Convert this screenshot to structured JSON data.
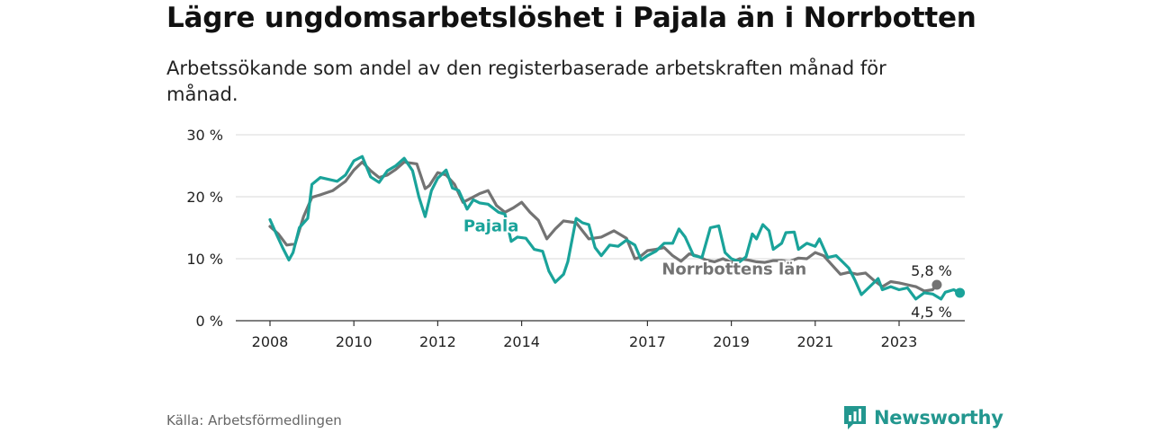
{
  "title": "Lägre ungdomsarbetslöshet i Pajala än i Norrbotten",
  "subtitle": "Arbetssökande som andel av den registerbaserade arbetskraften månad för månad.",
  "source": "Källa: Arbetsförmedlingen",
  "brand": {
    "name": "Newsworthy",
    "icon": "newsworthy-logo-icon",
    "color": "#23978f"
  },
  "chart_data": {
    "type": "line",
    "ylim": [
      0,
      30
    ],
    "y_ticks": [
      0,
      10,
      20,
      30
    ],
    "y_tick_labels": [
      "0 %",
      "10 %",
      "20 %",
      "30 %"
    ],
    "xlim": [
      2007.6,
      2024.5
    ],
    "x_ticks": [
      2008,
      2010,
      2012,
      2014,
      2017,
      2019,
      2021,
      2023
    ],
    "x_tick_labels": [
      "2008",
      "2010",
      "2012",
      "2014",
      "2017",
      "2019",
      "2021",
      "2023"
    ],
    "grid": true,
    "series": [
      {
        "name": "Norrbottens län",
        "color": "#737373",
        "label_year": 2017.6,
        "label_value": 8.3,
        "end_label": "5,8 %",
        "end_value": 5.8,
        "points": [
          [
            2008.0,
            15.2
          ],
          [
            2008.2,
            14.0
          ],
          [
            2008.4,
            12.2
          ],
          [
            2008.6,
            12.4
          ],
          [
            2008.8,
            16.8
          ],
          [
            2009.0,
            19.9
          ],
          [
            2009.2,
            20.3
          ],
          [
            2009.5,
            21.0
          ],
          [
            2009.8,
            22.5
          ],
          [
            2010.0,
            24.3
          ],
          [
            2010.2,
            25.6
          ],
          [
            2010.4,
            24.2
          ],
          [
            2010.6,
            23.1
          ],
          [
            2010.8,
            23.5
          ],
          [
            2011.0,
            24.4
          ],
          [
            2011.2,
            25.6
          ],
          [
            2011.5,
            25.3
          ],
          [
            2011.7,
            21.3
          ],
          [
            2011.8,
            21.8
          ],
          [
            2012.0,
            23.9
          ],
          [
            2012.2,
            23.5
          ],
          [
            2012.4,
            22.0
          ],
          [
            2012.6,
            19.1
          ],
          [
            2012.8,
            19.8
          ],
          [
            2013.0,
            20.5
          ],
          [
            2013.2,
            21.0
          ],
          [
            2013.4,
            18.6
          ],
          [
            2013.6,
            17.5
          ],
          [
            2013.8,
            18.2
          ],
          [
            2014.0,
            19.1
          ],
          [
            2014.2,
            17.5
          ],
          [
            2014.4,
            16.2
          ],
          [
            2014.6,
            13.2
          ],
          [
            2014.8,
            14.8
          ],
          [
            2015.0,
            16.1
          ],
          [
            2015.3,
            15.8
          ],
          [
            2015.6,
            13.2
          ],
          [
            2015.9,
            13.5
          ],
          [
            2016.2,
            14.5
          ],
          [
            2016.5,
            13.3
          ],
          [
            2016.7,
            10.0
          ],
          [
            2016.8,
            10.2
          ],
          [
            2017.0,
            11.3
          ],
          [
            2017.2,
            11.5
          ],
          [
            2017.4,
            11.8
          ],
          [
            2017.6,
            10.5
          ],
          [
            2017.8,
            9.6
          ],
          [
            2018.0,
            10.8
          ],
          [
            2018.2,
            10.4
          ],
          [
            2018.4,
            9.8
          ],
          [
            2018.6,
            9.5
          ],
          [
            2018.8,
            10.0
          ],
          [
            2019.0,
            9.4
          ],
          [
            2019.2,
            10.0
          ],
          [
            2019.4,
            9.8
          ],
          [
            2019.6,
            9.5
          ],
          [
            2019.8,
            9.4
          ],
          [
            2020.0,
            9.7
          ],
          [
            2020.2,
            9.7
          ],
          [
            2020.4,
            9.6
          ],
          [
            2020.6,
            10.1
          ],
          [
            2020.8,
            10.0
          ],
          [
            2021.0,
            11.0
          ],
          [
            2021.2,
            10.5
          ],
          [
            2021.4,
            9.0
          ],
          [
            2021.6,
            7.5
          ],
          [
            2021.8,
            7.8
          ],
          [
            2022.0,
            7.5
          ],
          [
            2022.2,
            7.7
          ],
          [
            2022.4,
            6.5
          ],
          [
            2022.6,
            5.5
          ],
          [
            2022.8,
            6.3
          ],
          [
            2023.0,
            6.1
          ],
          [
            2023.2,
            5.8
          ],
          [
            2023.4,
            5.5
          ],
          [
            2023.6,
            4.8
          ],
          [
            2023.8,
            5.0
          ],
          [
            2023.9,
            5.8
          ]
        ]
      },
      {
        "name": "Pajala",
        "color": "#1aa39a",
        "label_year": 2013.7,
        "label_value": 15.3,
        "end_label": "4,5 %",
        "end_value": 4.5,
        "points": [
          [
            2008.0,
            16.3
          ],
          [
            2008.15,
            14.0
          ],
          [
            2008.3,
            11.8
          ],
          [
            2008.45,
            9.8
          ],
          [
            2008.55,
            11.0
          ],
          [
            2008.7,
            15.0
          ],
          [
            2008.9,
            16.5
          ],
          [
            2009.0,
            22.0
          ],
          [
            2009.2,
            23.1
          ],
          [
            2009.4,
            22.8
          ],
          [
            2009.6,
            22.5
          ],
          [
            2009.8,
            23.5
          ],
          [
            2010.0,
            25.8
          ],
          [
            2010.2,
            26.5
          ],
          [
            2010.4,
            23.2
          ],
          [
            2010.6,
            22.3
          ],
          [
            2010.8,
            24.2
          ],
          [
            2011.0,
            25.0
          ],
          [
            2011.2,
            26.2
          ],
          [
            2011.4,
            24.2
          ],
          [
            2011.55,
            20.0
          ],
          [
            2011.7,
            16.8
          ],
          [
            2011.85,
            21.0
          ],
          [
            2012.0,
            23.0
          ],
          [
            2012.2,
            24.3
          ],
          [
            2012.35,
            21.4
          ],
          [
            2012.5,
            21.0
          ],
          [
            2012.7,
            18.0
          ],
          [
            2012.85,
            19.5
          ],
          [
            2013.0,
            19.0
          ],
          [
            2013.2,
            18.8
          ],
          [
            2013.45,
            17.5
          ],
          [
            2013.6,
            17.2
          ],
          [
            2013.75,
            12.8
          ],
          [
            2013.9,
            13.5
          ],
          [
            2014.1,
            13.3
          ],
          [
            2014.3,
            11.5
          ],
          [
            2014.5,
            11.2
          ],
          [
            2014.65,
            8.0
          ],
          [
            2014.8,
            6.2
          ],
          [
            2015.0,
            7.5
          ],
          [
            2015.1,
            9.5
          ],
          [
            2015.3,
            16.5
          ],
          [
            2015.45,
            15.8
          ],
          [
            2015.6,
            15.5
          ],
          [
            2015.75,
            11.8
          ],
          [
            2015.9,
            10.5
          ],
          [
            2016.1,
            12.2
          ],
          [
            2016.3,
            12.0
          ],
          [
            2016.5,
            13.0
          ],
          [
            2016.7,
            12.2
          ],
          [
            2016.85,
            9.8
          ],
          [
            2017.0,
            10.5
          ],
          [
            2017.2,
            11.2
          ],
          [
            2017.4,
            12.5
          ],
          [
            2017.6,
            12.5
          ],
          [
            2017.75,
            14.8
          ],
          [
            2017.9,
            13.5
          ],
          [
            2018.1,
            10.5
          ],
          [
            2018.3,
            10.2
          ],
          [
            2018.5,
            15.0
          ],
          [
            2018.7,
            15.3
          ],
          [
            2018.85,
            11.0
          ],
          [
            2019.0,
            10.0
          ],
          [
            2019.2,
            9.5
          ],
          [
            2019.35,
            10.3
          ],
          [
            2019.5,
            14.0
          ],
          [
            2019.6,
            13.2
          ],
          [
            2019.75,
            15.5
          ],
          [
            2019.9,
            14.5
          ],
          [
            2020.0,
            11.5
          ],
          [
            2020.2,
            12.5
          ],
          [
            2020.3,
            14.2
          ],
          [
            2020.5,
            14.3
          ],
          [
            2020.6,
            11.5
          ],
          [
            2020.8,
            12.5
          ],
          [
            2021.0,
            12.0
          ],
          [
            2021.1,
            13.2
          ],
          [
            2021.3,
            10.2
          ],
          [
            2021.5,
            10.5
          ],
          [
            2021.65,
            9.5
          ],
          [
            2021.8,
            8.5
          ],
          [
            2021.95,
            6.5
          ],
          [
            2022.1,
            4.2
          ],
          [
            2022.3,
            5.5
          ],
          [
            2022.5,
            6.8
          ],
          [
            2022.6,
            5.0
          ],
          [
            2022.8,
            5.5
          ],
          [
            2023.0,
            5.0
          ],
          [
            2023.2,
            5.3
          ],
          [
            2023.4,
            3.5
          ],
          [
            2023.6,
            4.5
          ],
          [
            2023.8,
            4.3
          ],
          [
            2024.0,
            3.5
          ],
          [
            2024.1,
            4.6
          ],
          [
            2024.3,
            5.0
          ],
          [
            2024.45,
            4.5
          ]
        ]
      }
    ]
  }
}
